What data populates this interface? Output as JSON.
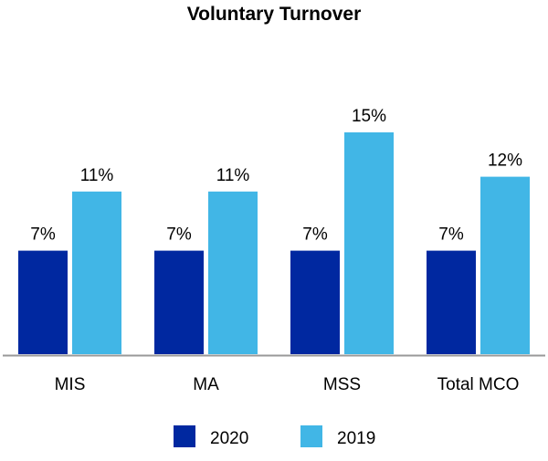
{
  "chart_data": {
    "type": "bar",
    "title": "Voluntary Turnover",
    "categories": [
      "MIS",
      "MA",
      "MSS",
      "Total MCO"
    ],
    "series": [
      {
        "name": "2020",
        "values": [
          7,
          7,
          7,
          7
        ],
        "labels": [
          "7%",
          "7%",
          "7%",
          "7%"
        ],
        "color": "#0028A0"
      },
      {
        "name": "2019",
        "values": [
          11,
          11,
          15,
          12
        ],
        "labels": [
          "11%",
          "11%",
          "15%",
          "12%"
        ],
        "color": "#41B6E6"
      }
    ],
    "xlabel": "",
    "ylabel": "",
    "ylim": [
      0,
      15
    ],
    "grid": false,
    "legend_position": "bottom"
  }
}
